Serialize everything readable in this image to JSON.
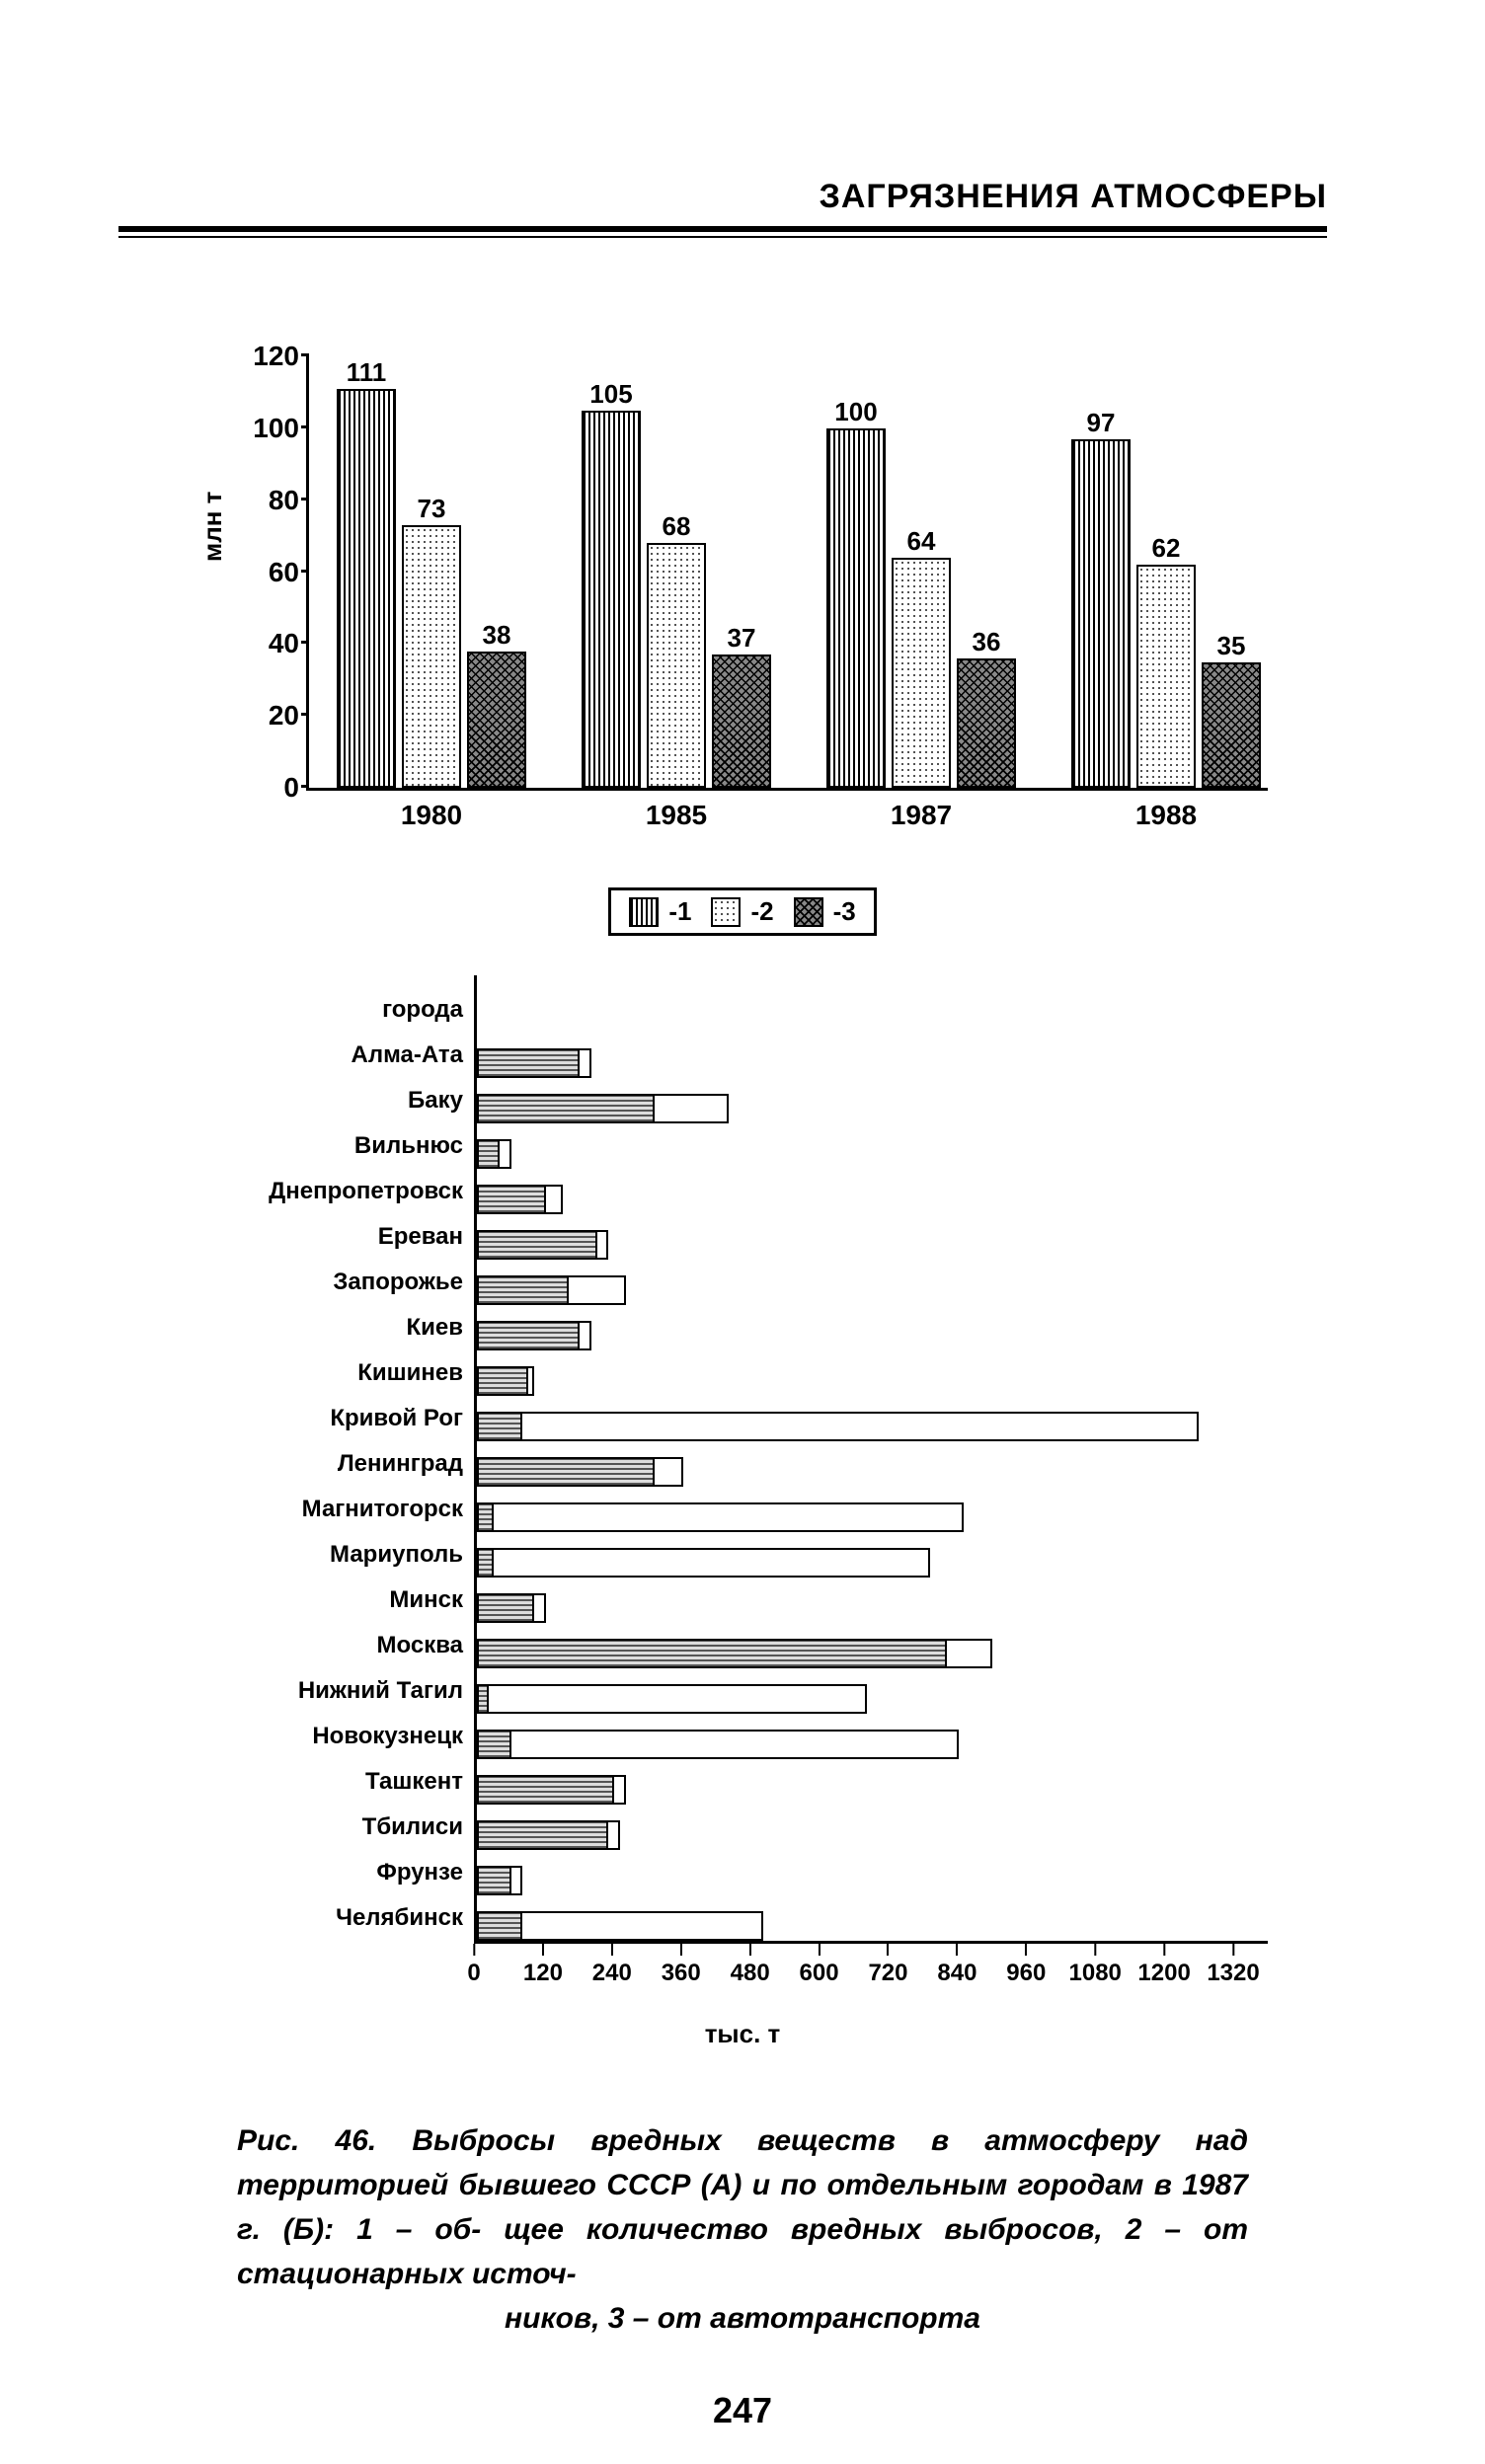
{
  "header": {
    "title": "ЗАГРЯЗНЕНИЯ АТМОСФЕРЫ"
  },
  "chartA": {
    "type": "grouped-bar",
    "ylabel": "млн т",
    "ylim": [
      0,
      120
    ],
    "ytick_step": 20,
    "yticks": [
      0,
      20,
      40,
      60,
      80,
      100,
      120
    ],
    "categories": [
      "1980",
      "1985",
      "1987",
      "1988"
    ],
    "series": [
      {
        "key": "1",
        "pattern": "p-vlines"
      },
      {
        "key": "2",
        "pattern": "p-dots"
      },
      {
        "key": "3",
        "pattern": "p-cross"
      }
    ],
    "values": {
      "1980": [
        111,
        73,
        38
      ],
      "1985": [
        105,
        68,
        37
      ],
      "1987": [
        100,
        64,
        36
      ],
      "1988": [
        97,
        62,
        35
      ]
    },
    "legend": [
      "-1",
      "-2",
      "-3"
    ]
  },
  "chartB": {
    "type": "horizontal-stacked-bar",
    "xlabel": "тыс. т",
    "xlim": [
      0,
      1380
    ],
    "xtick_step": 120,
    "xticks": [
      0,
      120,
      240,
      360,
      480,
      600,
      720,
      840,
      960,
      1080,
      1200,
      1320
    ],
    "header_label": "города",
    "series_patterns": {
      "auto": "p-hline",
      "stat": "p-white"
    },
    "rows": [
      {
        "label": "Алма-Ата",
        "auto": 180,
        "stat": 20
      },
      {
        "label": "Баку",
        "auto": 310,
        "stat": 130
      },
      {
        "label": "Вильнюс",
        "auto": 40,
        "stat": 20
      },
      {
        "label": "Днепропетровск",
        "auto": 120,
        "stat": 30
      },
      {
        "label": "Ереван",
        "auto": 210,
        "stat": 20
      },
      {
        "label": "Запорожье",
        "auto": 160,
        "stat": 100
      },
      {
        "label": "Киев",
        "auto": 180,
        "stat": 20
      },
      {
        "label": "Кишинев",
        "auto": 90,
        "stat": 10
      },
      {
        "label": "Кривой Рог",
        "auto": 80,
        "stat": 1180
      },
      {
        "label": "Ленинград",
        "auto": 310,
        "stat": 50
      },
      {
        "label": "Магнитогорск",
        "auto": 30,
        "stat": 820
      },
      {
        "label": "Мариуполь",
        "auto": 30,
        "stat": 760
      },
      {
        "label": "Минск",
        "auto": 100,
        "stat": 20
      },
      {
        "label": "Москва",
        "auto": 820,
        "stat": 80
      },
      {
        "label": "Нижний Тагил",
        "auto": 20,
        "stat": 660
      },
      {
        "label": "Новокузнецк",
        "auto": 60,
        "stat": 780
      },
      {
        "label": "Ташкент",
        "auto": 240,
        "stat": 20
      },
      {
        "label": "Тбилиси",
        "auto": 230,
        "stat": 20
      },
      {
        "label": "Фрунзе",
        "auto": 60,
        "stat": 20
      },
      {
        "label": "Челябинск",
        "auto": 80,
        "stat": 420
      }
    ]
  },
  "caption": {
    "line1": "Рис. 46. Выбросы вредных веществ в атмосферу над территорией",
    "line2": "бывшего СССР (А) и по отдельным городам в 1987 г. (Б): 1 – об-",
    "line3": "щее количество вредных выбросов, 2 – от стационарных источ-",
    "line4": "ников, 3 – от автотранспорта"
  },
  "page_number": "247",
  "style": {
    "font_family": "Arial",
    "text_color": "#000000",
    "background": "#ffffff",
    "axis_color": "#000000",
    "title_fontsize": 34,
    "tick_fontsize": 26,
    "label_fontsize": 24,
    "caption_fontsize": 30
  }
}
